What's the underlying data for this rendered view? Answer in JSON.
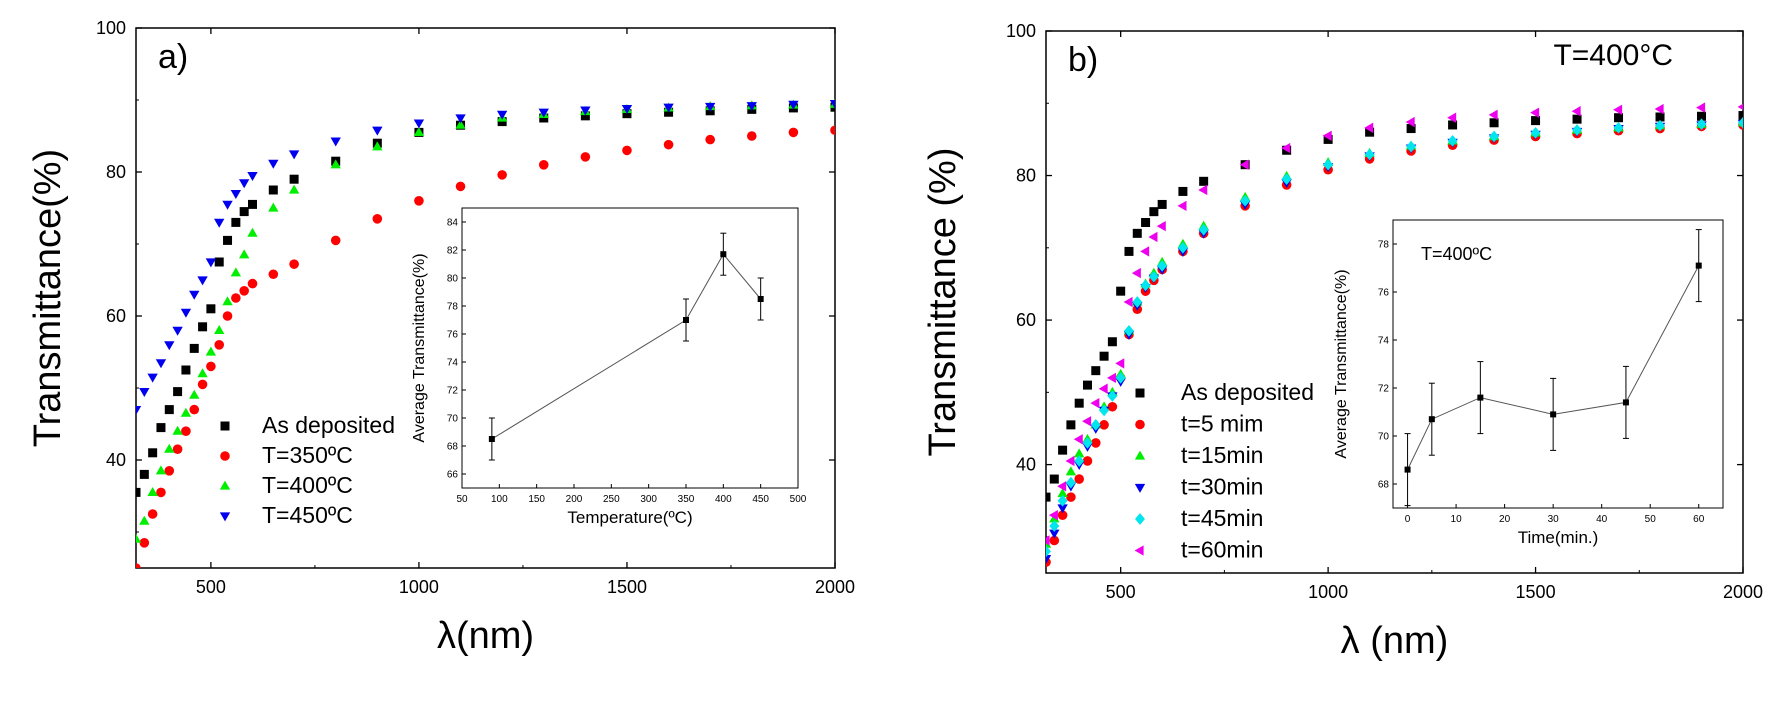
{
  "chart_data": [
    {
      "type": "scatter",
      "panel_label": "a)",
      "xlabel": "λ(nm)",
      "ylabel": "Transmittance(%)",
      "xlim": [
        320,
        2000
      ],
      "ylim": [
        25,
        100
      ],
      "xticks": [
        500,
        1000,
        1500,
        2000
      ],
      "yticks": [
        40,
        60,
        80,
        100
      ],
      "legend_position": "left-middle",
      "series": [
        {
          "name": "As deposited",
          "marker": "square",
          "color": "#000000",
          "x": [
            320,
            340,
            360,
            380,
            400,
            420,
            440,
            460,
            480,
            500,
            520,
            540,
            560,
            580,
            600,
            650,
            700,
            800,
            900,
            1000,
            1100,
            1200,
            1300,
            1400,
            1500,
            1600,
            1700,
            1800,
            1900,
            2000
          ],
          "y": [
            35.5,
            38,
            41,
            44.5,
            47,
            49.5,
            52.5,
            55.5,
            58.5,
            61,
            67.5,
            70.5,
            73,
            74.5,
            75.5,
            77.5,
            79,
            81.5,
            84,
            85.5,
            86.5,
            87,
            87.5,
            87.8,
            88.1,
            88.3,
            88.5,
            88.7,
            88.9,
            89
          ]
        },
        {
          "name": "T=350ºC",
          "marker": "circle",
          "color": "#ff0000",
          "x": [
            320,
            340,
            360,
            380,
            400,
            420,
            440,
            460,
            480,
            500,
            520,
            540,
            560,
            580,
            600,
            650,
            700,
            800,
            900,
            1000,
            1100,
            1200,
            1300,
            1400,
            1500,
            1600,
            1700,
            1800,
            1900,
            2000
          ],
          "y": [
            25,
            28.5,
            32.5,
            35.5,
            38.5,
            41.5,
            44,
            47,
            50.5,
            53,
            56,
            60,
            62.5,
            63.5,
            64.5,
            65.8,
            67.2,
            70.5,
            73.5,
            76,
            78,
            79.6,
            81,
            82.1,
            83,
            83.8,
            84.5,
            85,
            85.5,
            85.8
          ]
        },
        {
          "name": "T=400ºC",
          "marker": "triangle-up",
          "color": "#00ee00",
          "x": [
            320,
            340,
            360,
            380,
            400,
            420,
            440,
            460,
            480,
            500,
            520,
            540,
            560,
            580,
            600,
            650,
            700,
            800,
            900,
            1000,
            1100,
            1200,
            1300,
            1400,
            1500,
            1600,
            1700,
            1800,
            1900,
            2000
          ],
          "y": [
            29,
            31.5,
            35.5,
            38.5,
            41.5,
            44,
            46.5,
            49,
            52,
            55,
            58,
            62,
            66,
            68.5,
            71.5,
            75,
            77.5,
            81,
            83.5,
            85.5,
            86.5,
            87.5,
            88,
            88.4,
            88.7,
            88.9,
            89.1,
            89.2,
            89.3,
            89.4
          ]
        },
        {
          "name": "T=450ºC",
          "marker": "triangle-down",
          "color": "#0000ee",
          "x": [
            320,
            340,
            360,
            380,
            400,
            420,
            440,
            460,
            480,
            500,
            520,
            540,
            560,
            580,
            600,
            650,
            700,
            800,
            900,
            1000,
            1100,
            1200,
            1300,
            1400,
            1500,
            1600,
            1700,
            1800,
            1900,
            2000
          ],
          "y": [
            47,
            49.5,
            51.5,
            53.5,
            56,
            58,
            60.5,
            63,
            65,
            67.5,
            73,
            75.5,
            77,
            78.5,
            79.5,
            81.2,
            82.5,
            84.3,
            85.8,
            86.8,
            87.5,
            88,
            88.3,
            88.6,
            88.8,
            89,
            89.1,
            89.2,
            89.4,
            89.5
          ]
        }
      ],
      "inset": {
        "type": "line",
        "xlabel": "Temperature(ºC)",
        "ylabel": "Average Transmittance(%)",
        "xlim": [
          50,
          500
        ],
        "ylim": [
          65,
          85
        ],
        "xticks": [
          50,
          100,
          150,
          200,
          250,
          300,
          350,
          400,
          450,
          500
        ],
        "yticks": [
          66,
          68,
          70,
          72,
          74,
          76,
          78,
          80,
          82,
          84
        ],
        "x": [
          90,
          350,
          400,
          450
        ],
        "y": [
          68.5,
          77,
          81.7,
          78.5
        ],
        "yerr": [
          1.5,
          1.5,
          1.5,
          1.5
        ]
      }
    },
    {
      "type": "scatter",
      "panel_label": "b)",
      "annotation": "T=400°C",
      "xlabel": "λ (nm)",
      "ylabel": "Transmittance (%)",
      "xlim": [
        320,
        2000
      ],
      "ylim": [
        25,
        100
      ],
      "xticks": [
        500,
        1000,
        1500,
        2000
      ],
      "yticks": [
        40,
        60,
        80,
        100
      ],
      "legend_position": "bottom-middle",
      "series": [
        {
          "name": "As deposited",
          "marker": "square",
          "color": "#000000",
          "x": [
            320,
            340,
            360,
            380,
            400,
            420,
            440,
            460,
            480,
            500,
            520,
            540,
            560,
            580,
            600,
            650,
            700,
            800,
            900,
            1000,
            1100,
            1200,
            1300,
            1400,
            1500,
            1600,
            1700,
            1800,
            1900,
            2000
          ],
          "y": [
            35.5,
            38,
            42,
            45.5,
            48.5,
            51,
            53,
            55,
            57,
            64,
            69.5,
            72,
            73.5,
            75,
            76,
            77.8,
            79.2,
            81.5,
            83.5,
            85,
            86,
            86.5,
            87,
            87.3,
            87.6,
            87.8,
            88,
            88.1,
            88.2,
            88.3
          ]
        },
        {
          "name": "t=5 mim",
          "marker": "circle",
          "color": "#ff0000",
          "x": [
            320,
            340,
            360,
            380,
            400,
            420,
            440,
            460,
            480,
            500,
            520,
            540,
            560,
            580,
            600,
            650,
            700,
            800,
            900,
            1000,
            1100,
            1200,
            1300,
            1400,
            1500,
            1600,
            1700,
            1800,
            1900,
            2000
          ],
          "y": [
            26.5,
            29.5,
            33,
            35.5,
            38,
            40.5,
            43,
            45.5,
            48,
            52,
            58,
            61.5,
            64,
            65.5,
            67,
            69.5,
            72,
            75.8,
            78.7,
            80.8,
            82.3,
            83.4,
            84.2,
            84.9,
            85.4,
            85.8,
            86.2,
            86.5,
            86.8,
            87
          ]
        },
        {
          "name": "t=15min",
          "marker": "triangle-up",
          "color": "#00ee00",
          "x": [
            320,
            340,
            360,
            380,
            400,
            420,
            440,
            460,
            480,
            500,
            520,
            540,
            560,
            580,
            600,
            650,
            700,
            800,
            900,
            1000,
            1100,
            1200,
            1300,
            1400,
            1500,
            1600,
            1700,
            1800,
            1900,
            2000
          ],
          "y": [
            29,
            32.5,
            36,
            39,
            41.5,
            43.5,
            45.5,
            48,
            50,
            52.5,
            58.5,
            62.5,
            65,
            66.5,
            68,
            70.5,
            73,
            77,
            79.9,
            81.8,
            83.1,
            84.1,
            84.8,
            85.4,
            85.9,
            86.3,
            86.6,
            86.9,
            87.1,
            87.3
          ]
        },
        {
          "name": "t=30min",
          "marker": "triangle-down",
          "color": "#0000ee",
          "x": [
            320,
            340,
            360,
            380,
            400,
            420,
            440,
            460,
            480,
            500,
            520,
            540,
            560,
            580,
            600,
            650,
            700,
            800,
            900,
            1000,
            1100,
            1200,
            1300,
            1400,
            1500,
            1600,
            1700,
            1800,
            1900,
            2000
          ],
          "y": [
            27,
            30.5,
            34,
            37,
            40,
            42.5,
            45,
            47.5,
            49.5,
            51.5,
            58,
            62,
            64.5,
            65.8,
            67,
            69.5,
            72,
            76,
            79,
            81.2,
            82.7,
            83.8,
            84.6,
            85.2,
            85.7,
            86.1,
            86.5,
            86.8,
            87,
            87.2
          ]
        },
        {
          "name": "t=45min",
          "marker": "diamond",
          "color": "#00e5ee",
          "x": [
            320,
            340,
            360,
            380,
            400,
            420,
            440,
            460,
            480,
            500,
            520,
            540,
            560,
            580,
            600,
            650,
            700,
            800,
            900,
            1000,
            1100,
            1200,
            1300,
            1400,
            1500,
            1600,
            1700,
            1800,
            1900,
            2000
          ],
          "y": [
            28,
            31.5,
            35,
            37.5,
            40.5,
            43,
            45.5,
            47.5,
            49.5,
            52,
            58.5,
            62.5,
            64.8,
            66,
            67.5,
            70,
            72.5,
            76.5,
            79.5,
            81.5,
            82.9,
            84,
            84.8,
            85.4,
            85.9,
            86.3,
            86.6,
            86.9,
            87.1,
            87.3
          ]
        },
        {
          "name": "t=60min",
          "marker": "triangle-left",
          "color": "#ee00ee",
          "x": [
            320,
            340,
            360,
            380,
            400,
            420,
            440,
            460,
            480,
            500,
            520,
            540,
            560,
            580,
            600,
            650,
            700,
            800,
            900,
            1000,
            1100,
            1200,
            1300,
            1400,
            1500,
            1600,
            1700,
            1800,
            1900,
            2000
          ],
          "y": [
            29.5,
            33,
            37,
            40.5,
            43.5,
            46,
            48.5,
            50.5,
            52,
            54,
            62.5,
            66.5,
            69.5,
            71.5,
            73,
            75.8,
            78,
            81.5,
            83.8,
            85.5,
            86.6,
            87.4,
            88,
            88.4,
            88.7,
            88.9,
            89.1,
            89.2,
            89.4,
            89.5
          ]
        }
      ],
      "inset": {
        "type": "line",
        "annotation": "T=400ºC",
        "xlabel": "Time(min.)",
        "ylabel": "Average Transmittance(%)",
        "xlim": [
          -3,
          65
        ],
        "ylim": [
          67,
          79
        ],
        "xticks": [
          0,
          10,
          20,
          30,
          40,
          50,
          60
        ],
        "yticks": [
          68,
          70,
          72,
          74,
          76,
          78
        ],
        "x": [
          0,
          5,
          15,
          30,
          45,
          60
        ],
        "y": [
          68.6,
          70.7,
          71.6,
          70.9,
          71.4,
          77.1
        ],
        "yerr": [
          1.5,
          1.5,
          1.5,
          1.5,
          1.5,
          1.5
        ]
      }
    }
  ]
}
